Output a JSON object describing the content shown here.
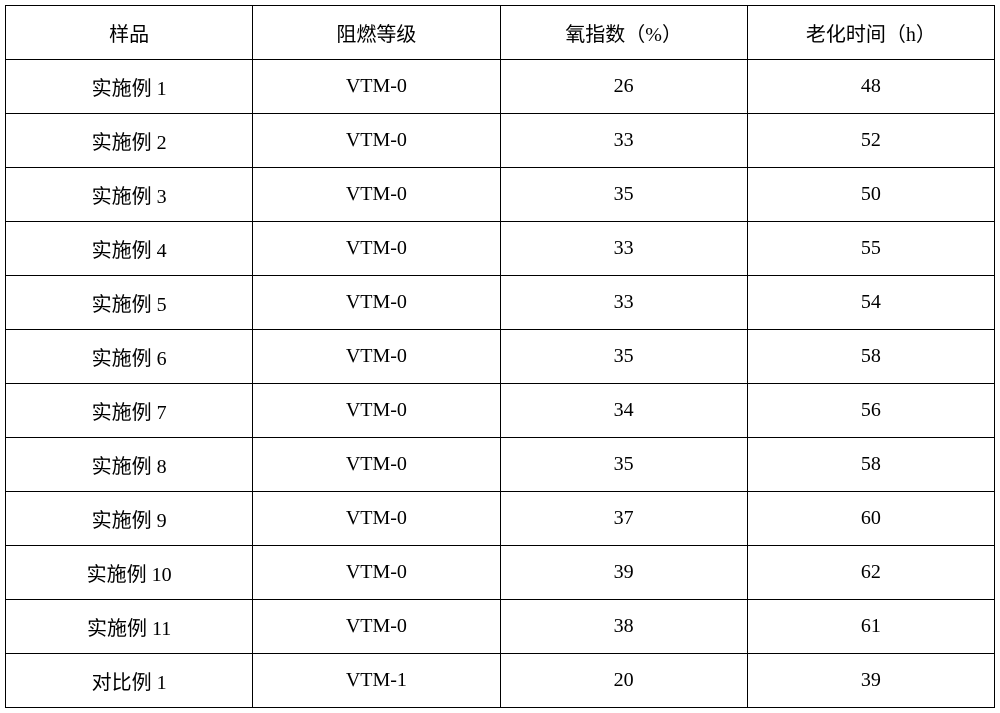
{
  "table": {
    "columns": [
      "样品",
      "阻燃等级",
      "氧指数（%）",
      "老化时间（h）"
    ],
    "rows": [
      [
        "实施例 1",
        "VTM-0",
        "26",
        "48"
      ],
      [
        "实施例 2",
        "VTM-0",
        "33",
        "52"
      ],
      [
        "实施例 3",
        "VTM-0",
        "35",
        "50"
      ],
      [
        "实施例 4",
        "VTM-0",
        "33",
        "55"
      ],
      [
        "实施例 5",
        "VTM-0",
        "33",
        "54"
      ],
      [
        "实施例 6",
        "VTM-0",
        "35",
        "58"
      ],
      [
        "实施例 7",
        "VTM-0",
        "34",
        "56"
      ],
      [
        "实施例 8",
        "VTM-0",
        "35",
        "58"
      ],
      [
        "实施例 9",
        "VTM-0",
        "37",
        "60"
      ],
      [
        "实施例 10",
        "VTM-0",
        "39",
        "62"
      ],
      [
        "实施例 11",
        "VTM-0",
        "38",
        "61"
      ],
      [
        "对比例 1",
        "VTM-1",
        "20",
        "39"
      ]
    ],
    "styling": {
      "border_color": "#000000",
      "border_width": 1.5,
      "background_color": "#ffffff",
      "text_color": "#000000",
      "font_size": 20,
      "font_family": "SimSun",
      "cell_padding": 12,
      "text_align": "center",
      "column_widths": [
        "25%",
        "25%",
        "25%",
        "25%"
      ]
    }
  }
}
